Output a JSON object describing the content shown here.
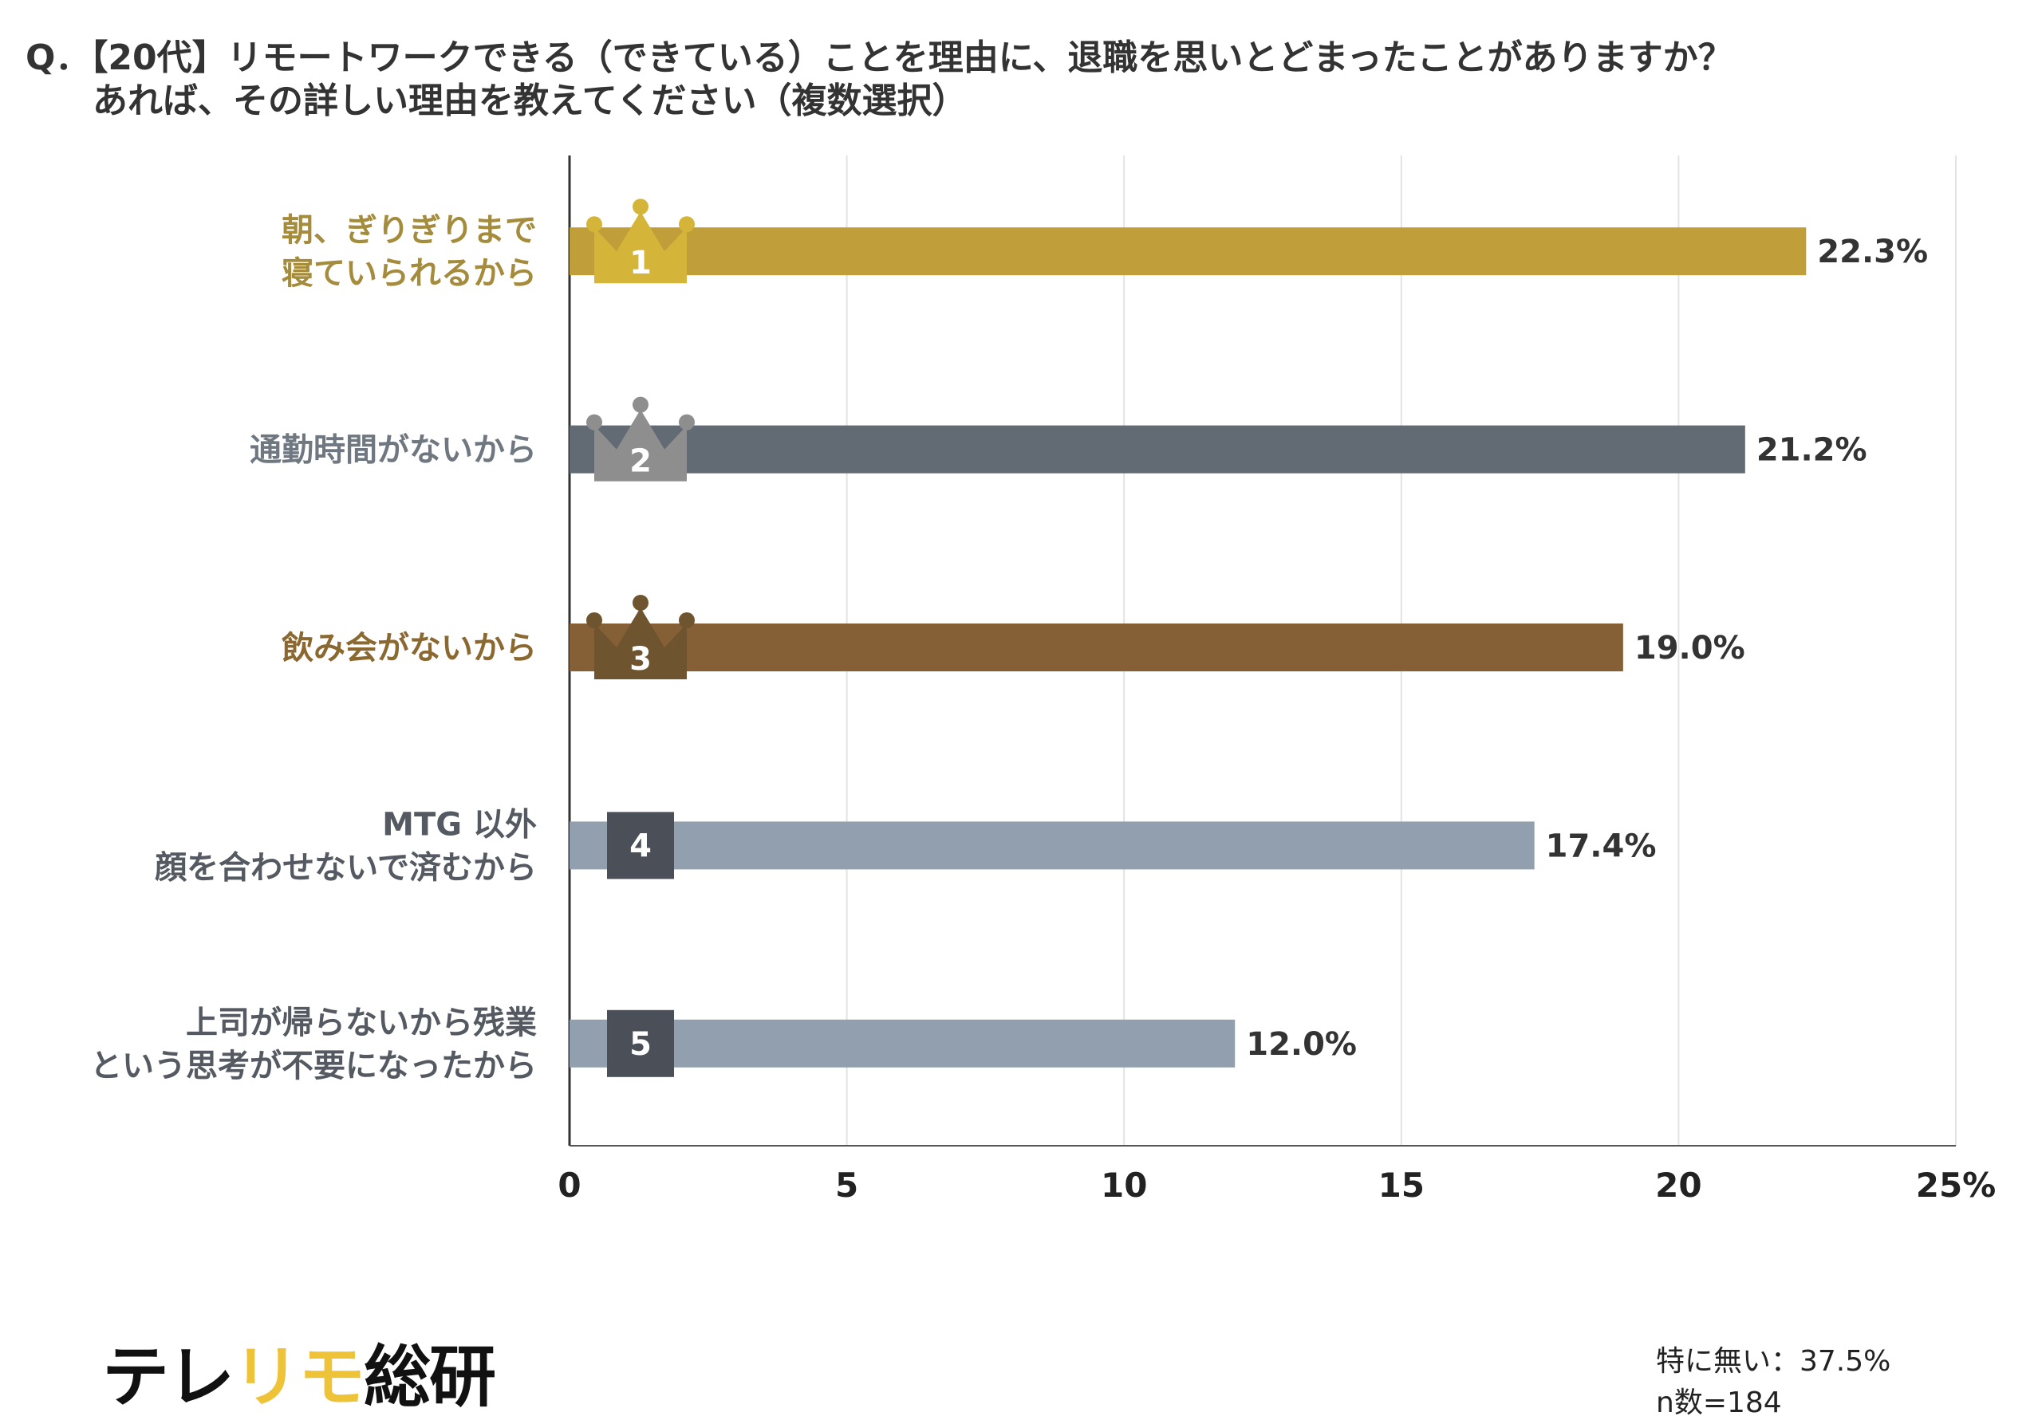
{
  "title": {
    "line1": "Q．【20代】リモートワークできる（できている）ことを理由に、退職を思いとどまったことがありますか？",
    "line2": "あれば、その詳しい理由を教えてください（複数選択）"
  },
  "chart_data": {
    "type": "bar",
    "orientation": "horizontal",
    "categories": [
      [
        "朝、ぎりぎりまで",
        "寝ていられるから"
      ],
      [
        "通勤時間がないから"
      ],
      [
        "飲み会がないから"
      ],
      [
        "MTG 以外",
        "顔を合わせないで済むから"
      ],
      [
        "上司が帰らないから残業",
        "という思考が不要になったから"
      ]
    ],
    "values": [
      22.3,
      21.2,
      19.0,
      17.4,
      12.0
    ],
    "value_labels": [
      "22.3%",
      "21.2%",
      "19.0%",
      "17.4%",
      "12.0%"
    ],
    "ranks": [
      "1",
      "2",
      "3",
      "4",
      "5"
    ],
    "bar_colors": [
      "#c09f3a",
      "#626a73",
      "#855f35",
      "#929fae",
      "#929fae"
    ],
    "label_colors": [
      "#a58c3c",
      "#6f7780",
      "#8a6830",
      "#555a62",
      "#555a62"
    ],
    "badge_colors": [
      "#d4b53a",
      "#8e8e8e",
      "#6f5430",
      "#4a4f58",
      "#4a4f58"
    ],
    "badge_styles": [
      "crown",
      "crown",
      "crown",
      "square",
      "square"
    ],
    "xlim": [
      0,
      25
    ],
    "xticks": [
      0,
      5,
      10,
      15,
      20,
      25
    ],
    "xtick_labels": [
      "0",
      "5",
      "10",
      "15",
      "20",
      "25%"
    ],
    "grid": true
  },
  "footer": {
    "logo_part1": "テレ",
    "logo_part2": "リモ",
    "logo_part3": "総研",
    "logo_accent_color": "#eec338",
    "note_none": "特に無い：37.5%",
    "note_n": "n数=184"
  }
}
